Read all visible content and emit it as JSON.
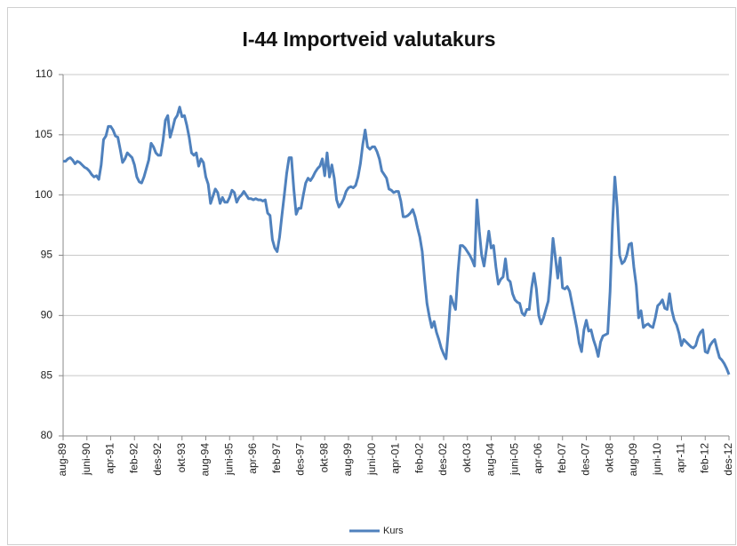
{
  "chart_data": {
    "type": "line",
    "title": "I-44 Importveid valutakurs",
    "categories": [
      "aug-89",
      null,
      null,
      null,
      null,
      null,
      null,
      null,
      null,
      null,
      "juni-90",
      null,
      null,
      null,
      null,
      null,
      null,
      null,
      null,
      null,
      "apr-91",
      null,
      null,
      null,
      null,
      null,
      null,
      null,
      null,
      null,
      "feb-92",
      null,
      null,
      null,
      null,
      null,
      null,
      null,
      null,
      null,
      "des-92",
      null,
      null,
      null,
      null,
      null,
      null,
      null,
      null,
      null,
      "okt-93",
      null,
      null,
      null,
      null,
      null,
      null,
      null,
      null,
      null,
      "aug-94",
      null,
      null,
      null,
      null,
      null,
      null,
      null,
      null,
      null,
      "juni-95",
      null,
      null,
      null,
      null,
      null,
      null,
      null,
      null,
      null,
      "apr-96",
      null,
      null,
      null,
      null,
      null,
      null,
      null,
      null,
      null,
      "feb-97",
      null,
      null,
      null,
      null,
      null,
      null,
      null,
      null,
      null,
      "des-97",
      null,
      null,
      null,
      null,
      null,
      null,
      null,
      null,
      null,
      "okt-98",
      null,
      null,
      null,
      null,
      null,
      null,
      null,
      null,
      null,
      "aug-99",
      null,
      null,
      null,
      null,
      null,
      null,
      null,
      null,
      null,
      "juni-00",
      null,
      null,
      null,
      null,
      null,
      null,
      null,
      null,
      null,
      "apr-01",
      null,
      null,
      null,
      null,
      null,
      null,
      null,
      null,
      null,
      "feb-02",
      null,
      null,
      null,
      null,
      null,
      null,
      null,
      null,
      null,
      "des-02",
      null,
      null,
      null,
      null,
      null,
      null,
      null,
      null,
      null,
      "okt-03",
      null,
      null,
      null,
      null,
      null,
      null,
      null,
      null,
      null,
      "aug-04",
      null,
      null,
      null,
      null,
      null,
      null,
      null,
      null,
      null,
      "juni-05",
      null,
      null,
      null,
      null,
      null,
      null,
      null,
      null,
      null,
      "apr-06",
      null,
      null,
      null,
      null,
      null,
      null,
      null,
      null,
      null,
      "feb-07",
      null,
      null,
      null,
      null,
      null,
      null,
      null,
      null,
      null,
      "des-07",
      null,
      null,
      null,
      null,
      null,
      null,
      null,
      null,
      null,
      "okt-08",
      null,
      null,
      null,
      null,
      null,
      null,
      null,
      null,
      null,
      "aug-09",
      null,
      null,
      null,
      null,
      null,
      null,
      null,
      null,
      null,
      "juni-10",
      null,
      null,
      null,
      null,
      null,
      null,
      null,
      null,
      null,
      "apr-11",
      null,
      null,
      null,
      null,
      null,
      null,
      null,
      null,
      null,
      "feb-12",
      null,
      null,
      null,
      null,
      null,
      null,
      null,
      null,
      null,
      "des-12"
    ],
    "series": [
      {
        "name": "Kurs",
        "color": "#4f81bd",
        "values": [
          102.8,
          102.8,
          103.0,
          103.1,
          102.9,
          102.6,
          102.8,
          102.7,
          102.5,
          102.3,
          102.2,
          102.0,
          101.7,
          101.5,
          101.6,
          101.3,
          102.5,
          104.6,
          104.9,
          105.7,
          105.7,
          105.4,
          104.9,
          104.8,
          103.8,
          102.7,
          103.0,
          103.5,
          103.3,
          103.1,
          102.5,
          101.5,
          101.1,
          101.0,
          101.5,
          102.2,
          102.9,
          104.3,
          104.0,
          103.5,
          103.3,
          103.3,
          104.5,
          106.2,
          106.6,
          104.8,
          105.5,
          106.3,
          106.6,
          107.3,
          106.5,
          106.6,
          105.8,
          104.8,
          103.5,
          103.3,
          103.5,
          102.4,
          103.0,
          102.7,
          101.5,
          100.9,
          99.3,
          99.9,
          100.5,
          100.2,
          99.3,
          99.8,
          99.4,
          99.4,
          99.8,
          100.4,
          100.2,
          99.4,
          99.8,
          100.0,
          100.3,
          100.0,
          99.7,
          99.7,
          99.6,
          99.7,
          99.6,
          99.6,
          99.5,
          99.6,
          98.5,
          98.3,
          96.3,
          95.6,
          95.3,
          96.5,
          98.3,
          100.0,
          101.8,
          103.1,
          103.1,
          100.5,
          98.4,
          98.9,
          98.9,
          100.0,
          101.0,
          101.4,
          101.2,
          101.5,
          101.9,
          102.2,
          102.4,
          103.0,
          101.6,
          103.5,
          101.5,
          102.5,
          101.4,
          99.6,
          99.0,
          99.3,
          99.7,
          100.3,
          100.6,
          100.7,
          100.6,
          100.8,
          101.5,
          102.6,
          104.2,
          105.4,
          104.0,
          103.8,
          104.0,
          104.0,
          103.6,
          103.0,
          102.0,
          101.7,
          101.4,
          100.5,
          100.4,
          100.2,
          100.3,
          100.3,
          99.5,
          98.2,
          98.2,
          98.3,
          98.5,
          98.8,
          98.2,
          97.3,
          96.5,
          95.3,
          93.0,
          91.0,
          89.9,
          89.0,
          89.5,
          88.6,
          88.0,
          87.3,
          86.8,
          86.4,
          88.8,
          91.6,
          91.0,
          90.5,
          93.5,
          95.8,
          95.8,
          95.6,
          95.3,
          95.0,
          94.6,
          94.1,
          99.6,
          97.0,
          95.0,
          94.1,
          95.5,
          97.0,
          95.6,
          95.8,
          94.0,
          92.6,
          93.0,
          93.2,
          94.7,
          93.0,
          92.8,
          91.8,
          91.3,
          91.1,
          91.0,
          90.2,
          90.0,
          90.5,
          90.5,
          92.3,
          93.5,
          92.2,
          90.0,
          89.3,
          89.8,
          90.5,
          91.2,
          93.5,
          96.4,
          94.8,
          93.1,
          94.8,
          92.3,
          92.2,
          92.4,
          92.0,
          91.0,
          90.0,
          89.0,
          87.7,
          87.0,
          88.8,
          89.6,
          88.7,
          88.8,
          88.0,
          87.4,
          86.6,
          87.8,
          88.3,
          88.4,
          88.5,
          92.0,
          97.5,
          101.5,
          99.0,
          95.0,
          94.3,
          94.5,
          95.0,
          95.9,
          96.0,
          94.0,
          92.5,
          89.8,
          90.4,
          89.0,
          89.2,
          89.3,
          89.1,
          89.0,
          89.8,
          90.8,
          91.0,
          91.3,
          90.6,
          90.5,
          91.8,
          90.4,
          89.6,
          89.2,
          88.5,
          87.5,
          88.0,
          87.8,
          87.6,
          87.4,
          87.3,
          87.5,
          88.2,
          88.6,
          88.8,
          87.0,
          86.9,
          87.5,
          87.8,
          88.0,
          87.2,
          86.5,
          86.3,
          86.0,
          85.6,
          85.1
        ]
      }
    ],
    "ylim": [
      80,
      110
    ],
    "yticks": [
      80,
      85,
      90,
      95,
      100,
      105,
      110
    ],
    "grid": true,
    "legend": "bottom"
  }
}
